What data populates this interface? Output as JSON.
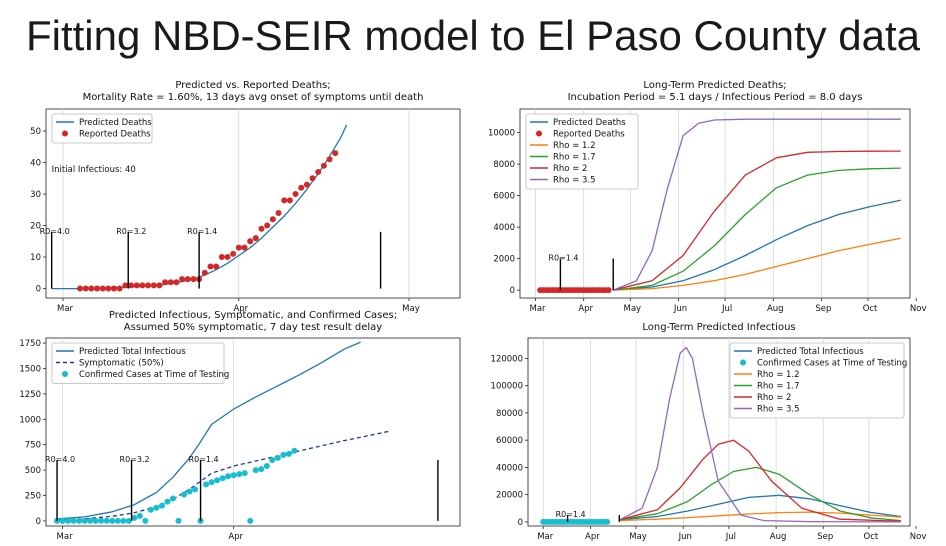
{
  "slide": {
    "title": "Fitting NBD-SEIR model to El Paso County data"
  },
  "chart_data": [
    {
      "id": "p1",
      "type": "line",
      "title": "Predicted vs. Reported Deaths;",
      "subtitle": "Mortality Rate = 1.60%, 13 days avg onset of symptoms until death",
      "xlim": [
        0,
        73
      ],
      "ylim": [
        -3,
        57
      ],
      "yticks": [
        0,
        10,
        20,
        30,
        40,
        50
      ],
      "xticks": [
        {
          "x": 3,
          "label": "Mar"
        },
        {
          "x": 34,
          "label": "Apr"
        },
        {
          "x": 64,
          "label": "May"
        }
      ],
      "legend": {
        "position": "top-left"
      },
      "annotations": [
        {
          "text": "Initial Infectious: 40",
          "x": 1,
          "y": 37
        }
      ],
      "vlines": [
        {
          "x": 1,
          "y0": 0,
          "y1": 18,
          "label": "R0=4.0"
        },
        {
          "x": 14.5,
          "y0": 0,
          "y1": 18,
          "label": "R0=3.2"
        },
        {
          "x": 27,
          "y0": 0,
          "y1": 18,
          "label": "R0=1.4"
        },
        {
          "x": 59,
          "y0": 0,
          "y1": 18,
          "label": ""
        }
      ],
      "series": [
        {
          "name": "Predicted Deaths",
          "kind": "line",
          "color": "#1f77b4",
          "x": [
            1,
            6,
            10,
            14,
            18,
            21,
            24,
            26,
            28,
            30,
            32,
            34,
            36,
            38,
            40,
            42,
            44,
            46,
            48,
            50,
            52,
            53
          ],
          "y": [
            0,
            0,
            0.2,
            0.4,
            0.8,
            1.3,
            2.2,
            3,
            4.3,
            6,
            8,
            10.5,
            13,
            16,
            19.5,
            23,
            27,
            31.5,
            36.5,
            42,
            48,
            52
          ]
        },
        {
          "name": "Reported Deaths",
          "kind": "scatter",
          "color": "#d62728",
          "x": [
            6,
            7,
            8,
            9,
            10,
            11,
            12,
            13,
            14,
            15,
            16,
            17,
            18,
            19,
            20,
            21,
            22,
            23,
            24,
            25,
            26,
            27,
            28,
            29,
            30,
            31,
            32,
            33,
            34,
            35,
            36,
            37,
            38,
            39,
            40,
            41,
            42,
            43,
            44,
            45,
            46,
            47,
            48,
            49,
            50,
            51
          ],
          "y": [
            0,
            0,
            0,
            0,
            0,
            0,
            0,
            0,
            1,
            1,
            1,
            1,
            1,
            1,
            1,
            2,
            2,
            2,
            3,
            3,
            3,
            3,
            5,
            7,
            7,
            10,
            10,
            11,
            13,
            13,
            15,
            16,
            19,
            20,
            22,
            24,
            28,
            28,
            30,
            32,
            33,
            35,
            37,
            39,
            41,
            43
          ]
        }
      ]
    },
    {
      "id": "p2",
      "type": "line",
      "title": "Long-Term Predicted Deaths;",
      "subtitle": "Incubation Period = 5.1 days / Infectious Period = 8.0 days",
      "xlim": [
        -5,
        246
      ],
      "ylim": [
        -500,
        11500
      ],
      "yticks": [
        0,
        2000,
        4000,
        6000,
        8000,
        10000
      ],
      "xticks": [
        {
          "x": 5,
          "label": "Mar"
        },
        {
          "x": 36,
          "label": "Apr"
        },
        {
          "x": 66,
          "label": "May"
        },
        {
          "x": 97,
          "label": "Jun"
        },
        {
          "x": 127,
          "label": "Jul"
        },
        {
          "x": 158,
          "label": "Aug"
        },
        {
          "x": 189,
          "label": "Sep"
        },
        {
          "x": 219,
          "label": "Oct"
        },
        {
          "x": 250,
          "label": "Nov"
        }
      ],
      "legend": {
        "position": "top-left"
      },
      "vlines": [
        {
          "x": 21,
          "y0": 0,
          "y1": 2000,
          "label": "R0=1.4"
        },
        {
          "x": 55,
          "y0": 0,
          "y1": 2000,
          "label": ""
        }
      ],
      "series": [
        {
          "name": "Predicted Deaths",
          "kind": "line",
          "color": "#1f77b4",
          "x": [
            55,
            80,
            100,
            120,
            140,
            160,
            180,
            200,
            220,
            240
          ],
          "y": [
            0,
            200,
            600,
            1300,
            2200,
            3200,
            4100,
            4800,
            5300,
            5700
          ]
        },
        {
          "name": "Reported Deaths",
          "kind": "scatter",
          "color": "#d62728",
          "x": [
            8,
            10,
            12,
            14,
            16,
            18,
            20,
            22,
            24,
            26,
            28,
            30,
            32,
            34,
            36,
            38,
            40,
            42,
            44,
            46,
            48,
            50,
            52
          ],
          "y": [
            0,
            0,
            0,
            0,
            0,
            0,
            0,
            0,
            0,
            0,
            0,
            0,
            0,
            0,
            0,
            0,
            0,
            0,
            0,
            0,
            0,
            0,
            0
          ]
        },
        {
          "name": "Rho = 1.2",
          "kind": "line",
          "color": "#ff7f0e",
          "x": [
            55,
            80,
            100,
            120,
            140,
            160,
            180,
            200,
            220,
            240
          ],
          "y": [
            0,
            100,
            300,
            600,
            1000,
            1500,
            2000,
            2500,
            2900,
            3300
          ]
        },
        {
          "name": "Rho = 1.7",
          "kind": "line",
          "color": "#2ca02c",
          "x": [
            55,
            80,
            100,
            120,
            140,
            160,
            180,
            200,
            220,
            240
          ],
          "y": [
            0,
            300,
            1200,
            2800,
            4800,
            6500,
            7300,
            7600,
            7700,
            7750
          ]
        },
        {
          "name": "Rho = 2",
          "kind": "line",
          "color": "#d62728",
          "x": [
            55,
            80,
            100,
            120,
            140,
            160,
            180,
            200,
            220,
            240
          ],
          "y": [
            0,
            600,
            2200,
            5000,
            7300,
            8400,
            8750,
            8800,
            8820,
            8830
          ]
        },
        {
          "name": "Rho = 3.5",
          "kind": "line",
          "color": "#9467bd",
          "x": [
            55,
            70,
            80,
            90,
            100,
            110,
            120,
            140,
            160,
            200,
            240
          ],
          "y": [
            0,
            600,
            2500,
            6500,
            9800,
            10600,
            10800,
            10850,
            10850,
            10850,
            10850
          ]
        }
      ]
    },
    {
      "id": "p3",
      "type": "line",
      "title": "Predicted Infectious, Symptomatic, and Confirmed Cases;",
      "subtitle": "Assumed 50% symptomatic, 7 day test result delay",
      "xlim": [
        -2,
        73
      ],
      "ylim": [
        -50,
        1800
      ],
      "yticks": [
        0,
        250,
        500,
        750,
        1000,
        1250,
        1500,
        1750
      ],
      "xticks": [
        {
          "x": 1,
          "label": "Mar"
        },
        {
          "x": 32,
          "label": "Apr"
        }
      ],
      "legend": {
        "position": "top-left"
      },
      "vlines": [
        {
          "x": 0,
          "y0": 0,
          "y1": 600,
          "label": "R0=4.0"
        },
        {
          "x": 13.5,
          "y0": 0,
          "y1": 600,
          "label": "R0=3.2"
        },
        {
          "x": 26,
          "y0": 0,
          "y1": 600,
          "label": "R0=1.4"
        },
        {
          "x": 69,
          "y0": 0,
          "y1": 600,
          "label": ""
        }
      ],
      "series": [
        {
          "name": "Predicted Total Infectious",
          "kind": "line",
          "color": "#1f77b4",
          "x": [
            0,
            5,
            10,
            14,
            18,
            21,
            24,
            26,
            28,
            32,
            36,
            40,
            44,
            48,
            52,
            55
          ],
          "y": [
            20,
            40,
            90,
            160,
            280,
            430,
            620,
            780,
            950,
            1100,
            1220,
            1330,
            1440,
            1560,
            1690,
            1760
          ]
        },
        {
          "name": "Symptomatic (50%)",
          "kind": "dashed",
          "color": "#1f3a93",
          "x": [
            0,
            5,
            10,
            14,
            18,
            21,
            24,
            26,
            28,
            32,
            36,
            40,
            44,
            48,
            52,
            56,
            60
          ],
          "y": [
            10,
            20,
            45,
            80,
            140,
            215,
            310,
            390,
            470,
            540,
            590,
            640,
            690,
            740,
            790,
            835,
            880
          ]
        },
        {
          "name": "Confirmed Cases at Time of Testing",
          "kind": "scatter",
          "color": "#17becf",
          "x": [
            0,
            1,
            2,
            3,
            4,
            5,
            6,
            7,
            8,
            9,
            10,
            11,
            12,
            13,
            14,
            15,
            16,
            17,
            18,
            19,
            20,
            21,
            22,
            23,
            24,
            25,
            26,
            27,
            28,
            29,
            30,
            31,
            32,
            33,
            34,
            35,
            36,
            37,
            38,
            39,
            40,
            41,
            42,
            43
          ],
          "y": [
            0,
            0,
            0,
            0,
            0,
            0,
            0,
            0,
            0,
            0,
            0,
            0,
            0,
            0,
            30,
            50,
            0,
            110,
            130,
            150,
            190,
            220,
            0,
            260,
            290,
            310,
            0,
            360,
            380,
            400,
            420,
            440,
            450,
            460,
            470,
            0,
            500,
            510,
            540,
            600,
            620,
            650,
            660,
            690
          ]
        }
      ]
    },
    {
      "id": "p4",
      "type": "line",
      "title": "Long-Term Predicted Infectious",
      "subtitle": "",
      "xlim": [
        -5,
        246
      ],
      "ylim": [
        -3000,
        135000
      ],
      "yticks": [
        0,
        20000,
        40000,
        60000,
        80000,
        100000,
        120000
      ],
      "xticks": [
        {
          "x": 5,
          "label": "Mar"
        },
        {
          "x": 36,
          "label": "Apr"
        },
        {
          "x": 66,
          "label": "May"
        },
        {
          "x": 97,
          "label": "Jun"
        },
        {
          "x": 127,
          "label": "Jul"
        },
        {
          "x": 158,
          "label": "Aug"
        },
        {
          "x": 189,
          "label": "Sep"
        },
        {
          "x": 219,
          "label": "Oct"
        },
        {
          "x": 250,
          "label": "Nov"
        }
      ],
      "legend": {
        "position": "top-right"
      },
      "vlines": [
        {
          "x": 21,
          "y0": 0,
          "y1": 5000,
          "label": "R0=1.4"
        },
        {
          "x": 55,
          "y0": 0,
          "y1": 5000,
          "label": ""
        }
      ],
      "series": [
        {
          "name": "Predicted Total Infectious",
          "kind": "line",
          "color": "#1f77b4",
          "x": [
            55,
            80,
            100,
            120,
            140,
            160,
            180,
            200,
            220,
            240
          ],
          "y": [
            1500,
            4000,
            8000,
            13000,
            18000,
            19500,
            17000,
            12000,
            7000,
            4000
          ]
        },
        {
          "name": "Confirmed Cases at Time of Testing",
          "kind": "scatter",
          "color": "#17becf",
          "x": [
            5,
            7,
            9,
            11,
            13,
            15,
            17,
            19,
            21,
            23,
            25,
            27,
            29,
            31,
            33,
            35,
            37,
            39,
            41,
            43,
            45,
            47
          ],
          "y": [
            0,
            0,
            0,
            0,
            0,
            0,
            0,
            0,
            0,
            0,
            0,
            0,
            0,
            0,
            0,
            0,
            0,
            0,
            0,
            0,
            0,
            0
          ]
        },
        {
          "name": "Rho = 1.2",
          "kind": "line",
          "color": "#ff7f0e",
          "x": [
            55,
            80,
            100,
            120,
            140,
            160,
            180,
            200,
            220,
            240
          ],
          "y": [
            1000,
            2000,
            3200,
            4500,
            5800,
            6800,
            7200,
            6500,
            5000,
            3500
          ]
        },
        {
          "name": "Rho = 1.7",
          "kind": "line",
          "color": "#2ca02c",
          "x": [
            55,
            80,
            100,
            115,
            130,
            145,
            160,
            180,
            200,
            220,
            240
          ],
          "y": [
            1500,
            6000,
            15000,
            27000,
            37000,
            40000,
            35000,
            20000,
            8000,
            3000,
            1000
          ]
        },
        {
          "name": "Rho = 2",
          "kind": "line",
          "color": "#d62728",
          "x": [
            55,
            80,
            95,
            110,
            120,
            130,
            140,
            155,
            175,
            200,
            240
          ],
          "y": [
            1500,
            9000,
            25000,
            46000,
            57000,
            60000,
            52000,
            30000,
            10000,
            2000,
            500
          ]
        },
        {
          "name": "Rho = 3.5",
          "kind": "line",
          "color": "#9467bd",
          "x": [
            55,
            70,
            80,
            88,
            95,
            99,
            103,
            110,
            120,
            135,
            150,
            180,
            240
          ],
          "y": [
            1500,
            10000,
            40000,
            90000,
            124000,
            128000,
            120000,
            80000,
            30000,
            5000,
            1000,
            200,
            0
          ]
        }
      ]
    }
  ]
}
